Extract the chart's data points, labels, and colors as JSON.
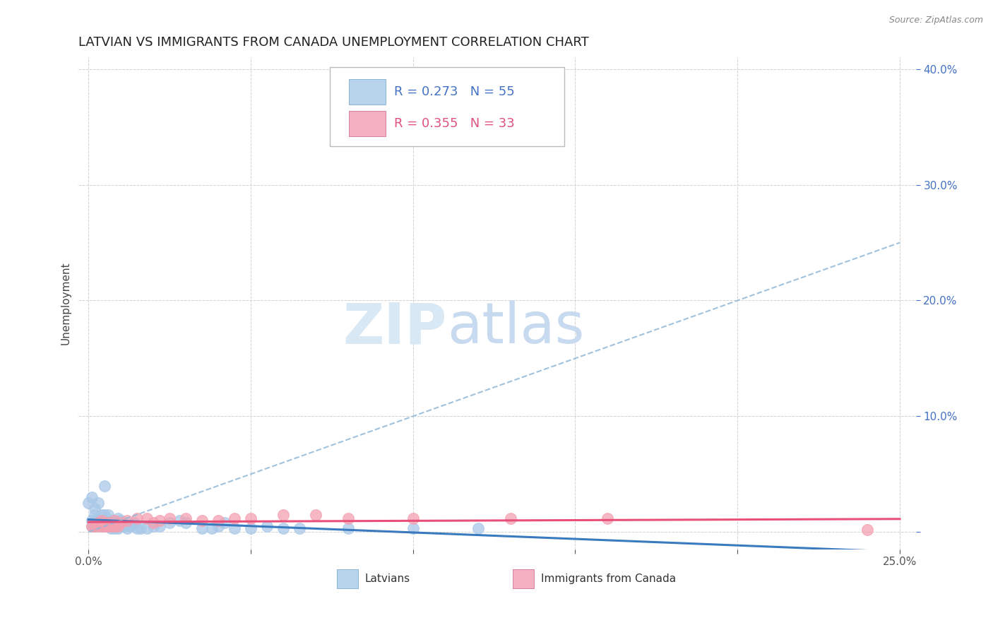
{
  "title": "LATVIAN VS IMMIGRANTS FROM CANADA UNEMPLOYMENT CORRELATION CHART",
  "source": "Source: ZipAtlas.com",
  "xlabel": "",
  "ylabel": "Unemployment",
  "xlim": [
    -0.003,
    0.255
  ],
  "ylim": [
    -0.015,
    0.41
  ],
  "xticks": [
    0.0,
    0.05,
    0.1,
    0.15,
    0.2,
    0.25
  ],
  "yticks": [
    0.0,
    0.1,
    0.2,
    0.3,
    0.4
  ],
  "xtick_labels": [
    "0.0%",
    "",
    "",
    "",
    "",
    "25.0%"
  ],
  "ytick_labels": [
    "",
    "10.0%",
    "20.0%",
    "30.0%",
    "40.0%"
  ],
  "series1_label": "Latvians",
  "series2_label": "Immigrants from Canada",
  "series1_color": "#a8c8e8",
  "series2_color": "#f4a0b0",
  "series1_edge": "#7aaed0",
  "series2_edge": "#e07090",
  "series1_R": 0.273,
  "series1_N": 55,
  "series2_R": 0.355,
  "series2_N": 33,
  "series1_line_color": "#3a7abf",
  "series2_line_color": "#e8507a",
  "series1_dash_color": "#90b8d8",
  "background_color": "#ffffff",
  "grid_color": "#cccccc",
  "tick_color": "#4472c4",
  "title_fontsize": 13,
  "axis_label_fontsize": 11,
  "tick_fontsize": 11,
  "legend_fontsize": 13,
  "watermark_zip": "ZIP",
  "watermark_atlas": "atlas",
  "watermark_color": "#d8e8f4",
  "series1_x": [
    0.0,
    0.001,
    0.001,
    0.001,
    0.002,
    0.002,
    0.002,
    0.002,
    0.003,
    0.003,
    0.003,
    0.003,
    0.004,
    0.004,
    0.004,
    0.005,
    0.005,
    0.005,
    0.005,
    0.006,
    0.006,
    0.006,
    0.007,
    0.007,
    0.007,
    0.008,
    0.008,
    0.009,
    0.009,
    0.01,
    0.01,
    0.011,
    0.012,
    0.013,
    0.014,
    0.015,
    0.016,
    0.018,
    0.02,
    0.022,
    0.025,
    0.028,
    0.03,
    0.035,
    0.038,
    0.04,
    0.042,
    0.045,
    0.05,
    0.055,
    0.06,
    0.065,
    0.08,
    0.1,
    0.12
  ],
  "series1_y": [
    0.025,
    0.005,
    0.01,
    0.03,
    0.005,
    0.01,
    0.015,
    0.02,
    0.005,
    0.008,
    0.01,
    0.025,
    0.005,
    0.008,
    0.015,
    0.005,
    0.01,
    0.015,
    0.04,
    0.005,
    0.008,
    0.015,
    0.003,
    0.008,
    0.01,
    0.003,
    0.008,
    0.003,
    0.012,
    0.005,
    0.01,
    0.005,
    0.003,
    0.005,
    0.008,
    0.003,
    0.003,
    0.003,
    0.005,
    0.005,
    0.008,
    0.01,
    0.008,
    0.003,
    0.003,
    0.005,
    0.008,
    0.003,
    0.003,
    0.005,
    0.003,
    0.003,
    0.003,
    0.003,
    0.003
  ],
  "series2_x": [
    0.001,
    0.002,
    0.003,
    0.003,
    0.004,
    0.004,
    0.005,
    0.005,
    0.006,
    0.006,
    0.007,
    0.008,
    0.008,
    0.009,
    0.01,
    0.012,
    0.015,
    0.018,
    0.02,
    0.022,
    0.025,
    0.03,
    0.035,
    0.04,
    0.045,
    0.05,
    0.06,
    0.07,
    0.08,
    0.1,
    0.13,
    0.16,
    0.24
  ],
  "series2_y": [
    0.005,
    0.005,
    0.005,
    0.008,
    0.005,
    0.01,
    0.005,
    0.008,
    0.005,
    0.008,
    0.005,
    0.005,
    0.01,
    0.005,
    0.008,
    0.01,
    0.012,
    0.012,
    0.008,
    0.01,
    0.012,
    0.012,
    0.01,
    0.01,
    0.012,
    0.012,
    0.015,
    0.015,
    0.012,
    0.012,
    0.012,
    0.012,
    0.002
  ]
}
